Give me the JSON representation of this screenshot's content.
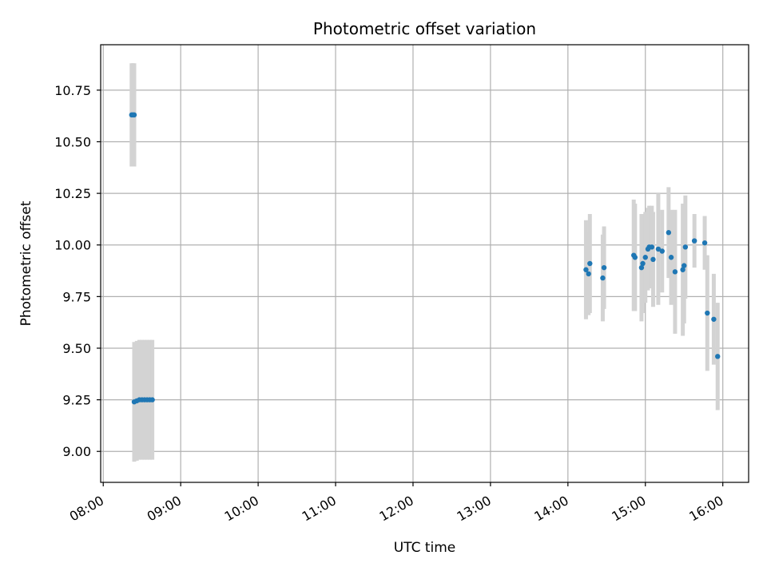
{
  "chart_data": {
    "type": "scatter",
    "title": "Photometric offset variation",
    "xlabel": "UTC time",
    "ylabel": "Photometric offset",
    "x_ticks": [
      "08:00",
      "09:00",
      "10:00",
      "11:00",
      "12:00",
      "13:00",
      "14:00",
      "15:00",
      "16:00"
    ],
    "y_ticks": [
      "9.00",
      "9.25",
      "9.50",
      "9.75",
      "10.00",
      "10.25",
      "10.50",
      "10.75"
    ],
    "xlim": [
      "07:58",
      "16:20"
    ],
    "ylim": [
      8.85,
      10.97
    ],
    "grid": true,
    "colors": {
      "point": "#1f77b4",
      "errorbar": "#d3d3d3",
      "grid": "#b0b0b0"
    },
    "series": [
      {
        "points": [
          {
            "x": "08:22",
            "y": 10.63,
            "err": 0.25
          },
          {
            "x": "08:23",
            "y": 10.63,
            "err": 0.25
          },
          {
            "x": "08:24",
            "y": 10.63,
            "err": 0.25
          },
          {
            "x": "08:24",
            "y": 9.24,
            "err": 0.29
          },
          {
            "x": "08:26",
            "y": 9.245,
            "err": 0.29
          },
          {
            "x": "08:28",
            "y": 9.25,
            "err": 0.29
          },
          {
            "x": "08:30",
            "y": 9.25,
            "err": 0.29
          },
          {
            "x": "08:32",
            "y": 9.25,
            "err": 0.29
          },
          {
            "x": "08:34",
            "y": 9.25,
            "err": 0.29
          },
          {
            "x": "08:36",
            "y": 9.25,
            "err": 0.29
          },
          {
            "x": "08:38",
            "y": 9.25,
            "err": 0.29
          },
          {
            "x": "14:14",
            "y": 9.88,
            "err": 0.24
          },
          {
            "x": "14:16",
            "y": 9.86,
            "err": 0.2
          },
          {
            "x": "14:17",
            "y": 9.91,
            "err": 0.24
          },
          {
            "x": "14:27",
            "y": 9.84,
            "err": 0.21
          },
          {
            "x": "14:28",
            "y": 9.89,
            "err": 0.2
          },
          {
            "x": "14:51",
            "y": 9.95,
            "err": 0.27
          },
          {
            "x": "14:52",
            "y": 9.94,
            "err": 0.26
          },
          {
            "x": "14:57",
            "y": 9.89,
            "err": 0.26
          },
          {
            "x": "14:58",
            "y": 9.91,
            "err": 0.24
          },
          {
            "x": "15:00",
            "y": 9.94,
            "err": 0.22
          },
          {
            "x": "15:02",
            "y": 9.98,
            "err": 0.2
          },
          {
            "x": "15:03",
            "y": 9.99,
            "err": 0.2
          },
          {
            "x": "15:05",
            "y": 9.99,
            "err": 0.2
          },
          {
            "x": "15:06",
            "y": 9.93,
            "err": 0.23
          },
          {
            "x": "15:10",
            "y": 9.98,
            "err": 0.27
          },
          {
            "x": "15:13",
            "y": 9.97,
            "err": 0.2
          },
          {
            "x": "15:18",
            "y": 10.06,
            "err": 0.22
          },
          {
            "x": "15:20",
            "y": 9.94,
            "err": 0.23
          },
          {
            "x": "15:23",
            "y": 9.87,
            "err": 0.3
          },
          {
            "x": "15:29",
            "y": 9.88,
            "err": 0.32
          },
          {
            "x": "15:30",
            "y": 9.9,
            "err": 0.28
          },
          {
            "x": "15:31",
            "y": 9.99,
            "err": 0.25
          },
          {
            "x": "15:38",
            "y": 10.02,
            "err": 0.13
          },
          {
            "x": "15:46",
            "y": 10.01,
            "err": 0.13
          },
          {
            "x": "15:48",
            "y": 9.67,
            "err": 0.28
          },
          {
            "x": "15:53",
            "y": 9.64,
            "err": 0.22
          },
          {
            "x": "15:56",
            "y": 9.46,
            "err": 0.26
          }
        ]
      }
    ]
  }
}
